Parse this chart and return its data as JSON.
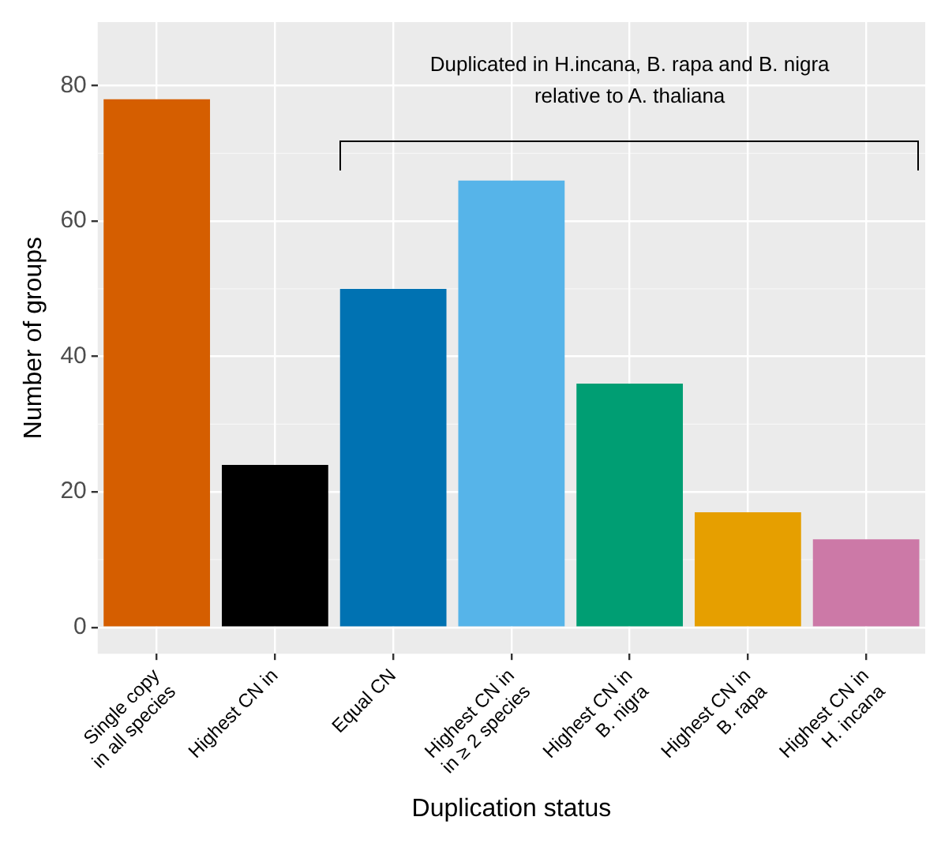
{
  "chart_data": {
    "type": "bar",
    "xlabel": "Duplication status",
    "ylabel": "Number of groups",
    "categories": [
      "Single copy\nin all species",
      "Highest CN in",
      "Equal CN",
      "Highest CN in\nin ≥ 2 species",
      "Highest CN in\nB. nigra",
      "Highest CN in\nB. rapa",
      "Highest CN in\nH. incana"
    ],
    "values": [
      78,
      24,
      50,
      66,
      36,
      17,
      13
    ],
    "colors": [
      "#d55e00",
      "#000000",
      "#0072b2",
      "#56b4e9",
      "#009e73",
      "#e69f00",
      "#cc79a7"
    ],
    "ylim": [
      -3.9,
      89.4
    ],
    "yticks": [
      0,
      20,
      40,
      60,
      80
    ],
    "grid": true,
    "legend": false,
    "annotations": [
      "Duplicated in H.incana, B. rapa and B. nigra\nrelative to A. thaliana"
    ]
  }
}
